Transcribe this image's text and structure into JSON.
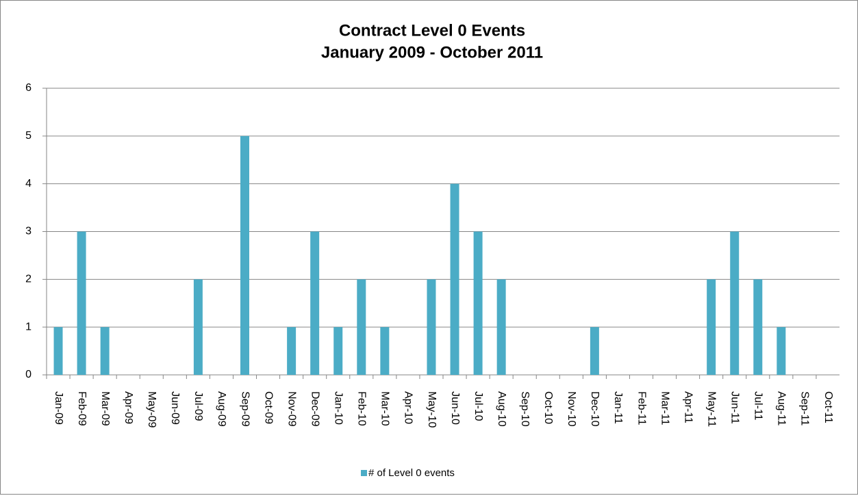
{
  "chart_data": {
    "type": "bar",
    "title": "Contract Level 0 Events",
    "subtitle": "January 2009 - October 2011",
    "categories": [
      "Jan-09",
      "Feb-09",
      "Mar-09",
      "Apr-09",
      "May-09",
      "Jun-09",
      "Jul-09",
      "Aug-09",
      "Sep-09",
      "Oct-09",
      "Nov-09",
      "Dec-09",
      "Jan-10",
      "Feb-10",
      "Mar-10",
      "Apr-10",
      "May-10",
      "Jun-10",
      "Jul-10",
      "Aug-10",
      "Sep-10",
      "Oct-10",
      "Nov-10",
      "Dec-10",
      "Jan-11",
      "Feb-11",
      "Mar-11",
      "Apr-11",
      "May-11",
      "Jun-11",
      "Jul-11",
      "Aug-11",
      "Sep-11",
      "Oct-11"
    ],
    "series": [
      {
        "name": "# of Level 0 events",
        "color": "#4bacc6",
        "values": [
          1,
          3,
          1,
          0,
          0,
          0,
          2,
          0,
          5,
          0,
          1,
          3,
          1,
          2,
          1,
          0,
          2,
          4,
          3,
          2,
          0,
          0,
          0,
          1,
          0,
          0,
          0,
          0,
          2,
          3,
          2,
          1,
          0,
          0
        ]
      }
    ],
    "ylim": [
      0,
      6
    ],
    "yticks": [
      0,
      1,
      2,
      3,
      4,
      5,
      6
    ],
    "grid": true,
    "legend": "bottom"
  }
}
